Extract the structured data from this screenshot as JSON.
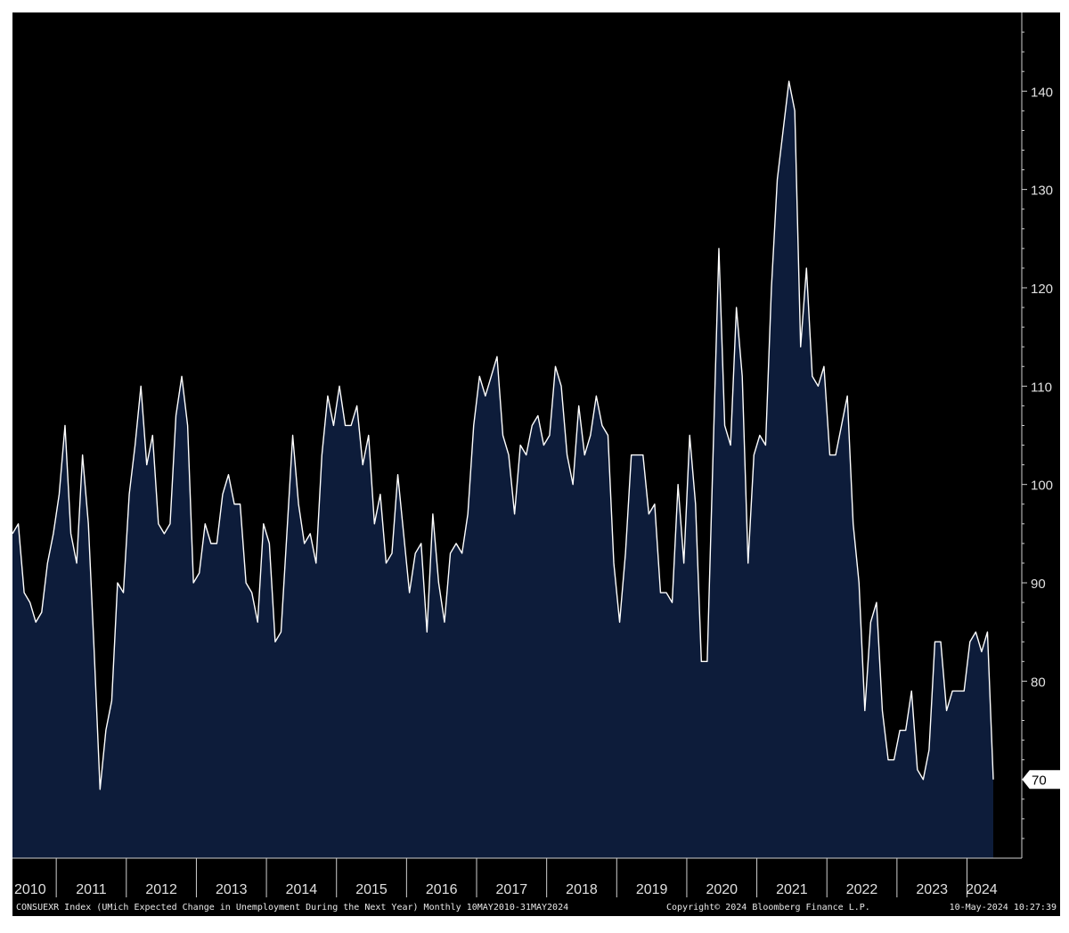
{
  "footer": {
    "left": "CONSUEXR Index (UMich Expected Change in Unemployment During the Next Year)  Monthly 10MAY2010-31MAY2024",
    "center": "Copyright© 2024 Bloomberg Finance L.P.",
    "right": "10-May-2024 10:27:39"
  },
  "colors": {
    "background": "#000000",
    "area_fill": "#0d1c3a",
    "line": "#ffffff",
    "axis_text": "#e0e0e0",
    "footer_bg": "#000000"
  },
  "chart_data": {
    "type": "area",
    "title": "",
    "xlabel": "",
    "ylabel": "",
    "ylim": [
      62,
      148
    ],
    "y_ticks": [
      70,
      80,
      90,
      100,
      110,
      120,
      130,
      140
    ],
    "y_tick_labels": [
      "80",
      "90",
      "100",
      "110",
      "120",
      "130",
      "140"
    ],
    "last_value_label": "70",
    "x_start": "2010-05",
    "x_end": "2024-05",
    "x_tick_labels": [
      "2010",
      "2011",
      "2012",
      "2013",
      "2014",
      "2015",
      "2016",
      "2017",
      "2018",
      "2019",
      "2020",
      "2021",
      "2022",
      "2023",
      "2024"
    ],
    "grid": false,
    "series": [
      {
        "values": [
          95,
          96,
          89,
          88,
          86,
          87,
          92,
          95,
          99,
          106,
          95,
          92,
          103,
          96,
          83,
          69,
          75,
          78,
          90,
          89,
          99,
          104,
          110,
          102,
          105,
          96,
          95,
          96,
          107,
          111,
          106,
          90,
          91,
          96,
          94,
          94,
          99,
          101,
          98,
          98,
          90,
          89,
          86,
          96,
          94,
          84,
          85,
          95,
          105,
          98,
          94,
          95,
          92,
          103,
          109,
          106,
          110,
          106,
          106,
          108,
          102,
          105,
          96,
          99,
          92,
          93,
          101,
          95,
          89,
          93,
          94,
          85,
          97,
          90,
          86,
          93,
          94,
          93,
          97,
          106,
          111,
          109,
          111,
          113,
          105,
          103,
          97,
          104,
          103,
          106,
          107,
          104,
          105,
          112,
          110,
          103,
          100,
          108,
          103,
          105,
          109,
          106,
          105,
          92,
          86,
          93,
          103,
          103,
          103,
          97,
          98,
          89,
          89,
          88,
          100,
          92,
          105,
          98,
          82,
          82,
          103,
          124,
          106,
          104,
          118,
          111,
          92,
          103,
          105,
          104,
          120,
          131,
          136,
          141,
          138,
          114,
          122,
          111,
          110,
          112,
          103,
          103,
          106,
          109,
          96,
          90,
          77,
          86,
          88,
          77,
          72,
          72,
          75,
          75,
          79,
          71,
          70,
          73,
          84,
          84,
          77,
          79,
          79,
          79,
          84,
          85,
          83,
          85,
          70
        ]
      }
    ]
  }
}
